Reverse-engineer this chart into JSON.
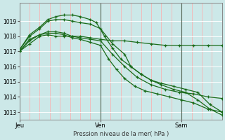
{
  "bg_color": "#cce8e8",
  "grid_color_h": "#ffffff",
  "grid_color_v": "#ffaaaa",
  "line_color": "#1a6b1a",
  "xlabel": "Pression niveau de la mer( hPa )",
  "ylim": [
    1012.5,
    1020.2
  ],
  "yticks": [
    1013,
    1014,
    1015,
    1016,
    1017,
    1018,
    1019
  ],
  "xtick_labels": [
    "Jeu",
    "Ven",
    "Sam"
  ],
  "xtick_positions": [
    0.0,
    0.4,
    0.8
  ],
  "vline_positions": [
    0.0,
    0.4,
    0.8
  ],
  "series": [
    {
      "x": [
        0.0,
        0.05,
        0.1,
        0.14,
        0.18,
        0.22,
        0.26,
        0.3,
        0.35,
        0.4,
        0.46,
        0.52,
        0.58,
        0.65,
        0.72,
        0.79,
        0.86,
        0.93,
        1.0
      ],
      "y": [
        1017.0,
        1017.5,
        1018.0,
        1018.1,
        1018.0,
        1018.0,
        1018.0,
        1018.0,
        1017.9,
        1017.8,
        1017.7,
        1017.7,
        1017.6,
        1017.5,
        1017.4,
        1017.4,
        1017.4,
        1017.4,
        1017.4
      ]
    },
    {
      "x": [
        0.0,
        0.05,
        0.1,
        0.14,
        0.18,
        0.22,
        0.26,
        0.3,
        0.35,
        0.4,
        0.46,
        0.52,
        0.58,
        0.65,
        0.72,
        0.79,
        0.86,
        0.93,
        1.0
      ],
      "y": [
        1017.0,
        1017.7,
        1018.1,
        1018.3,
        1018.3,
        1018.2,
        1018.0,
        1017.9,
        1017.8,
        1017.7,
        1016.8,
        1016.0,
        1015.3,
        1014.8,
        1014.5,
        1014.3,
        1014.2,
        1014.0,
        1013.9
      ]
    },
    {
      "x": [
        0.0,
        0.05,
        0.1,
        0.14,
        0.18,
        0.22,
        0.26,
        0.3,
        0.35,
        0.4,
        0.44,
        0.48,
        0.52,
        0.57,
        0.62,
        0.68,
        0.74,
        0.8,
        0.86,
        0.93,
        1.0
      ],
      "y": [
        1017.0,
        1017.8,
        1018.1,
        1018.2,
        1018.2,
        1018.1,
        1017.9,
        1017.8,
        1017.6,
        1017.4,
        1016.5,
        1015.8,
        1015.2,
        1014.7,
        1014.4,
        1014.2,
        1014.0,
        1013.8,
        1013.6,
        1013.2,
        1013.0
      ]
    },
    {
      "x": [
        0.0,
        0.05,
        0.1,
        0.14,
        0.18,
        0.22,
        0.26,
        0.3,
        0.35,
        0.4,
        0.46,
        0.52,
        0.55,
        0.6,
        0.65,
        0.7,
        0.76,
        0.82,
        0.88,
        0.94,
        1.0
      ],
      "y": [
        1017.1,
        1018.0,
        1018.5,
        1019.0,
        1019.1,
        1019.1,
        1019.0,
        1018.9,
        1018.8,
        1018.5,
        1017.5,
        1016.8,
        1016.0,
        1015.5,
        1015.1,
        1014.9,
        1014.7,
        1014.5,
        1014.3,
        1013.5,
        1013.0
      ]
    },
    {
      "x": [
        0.0,
        0.05,
        0.1,
        0.14,
        0.18,
        0.22,
        0.26,
        0.3,
        0.35,
        0.38,
        0.42,
        0.46,
        0.5,
        0.55,
        0.6,
        0.65,
        0.7,
        0.76,
        0.82,
        0.88,
        0.94,
        1.0
      ],
      "y": [
        1017.1,
        1018.1,
        1018.6,
        1019.1,
        1019.3,
        1019.4,
        1019.4,
        1019.3,
        1019.1,
        1018.9,
        1018.0,
        1017.2,
        1016.5,
        1016.0,
        1015.5,
        1015.1,
        1014.8,
        1014.5,
        1014.3,
        1013.8,
        1013.2,
        1012.8
      ]
    }
  ]
}
